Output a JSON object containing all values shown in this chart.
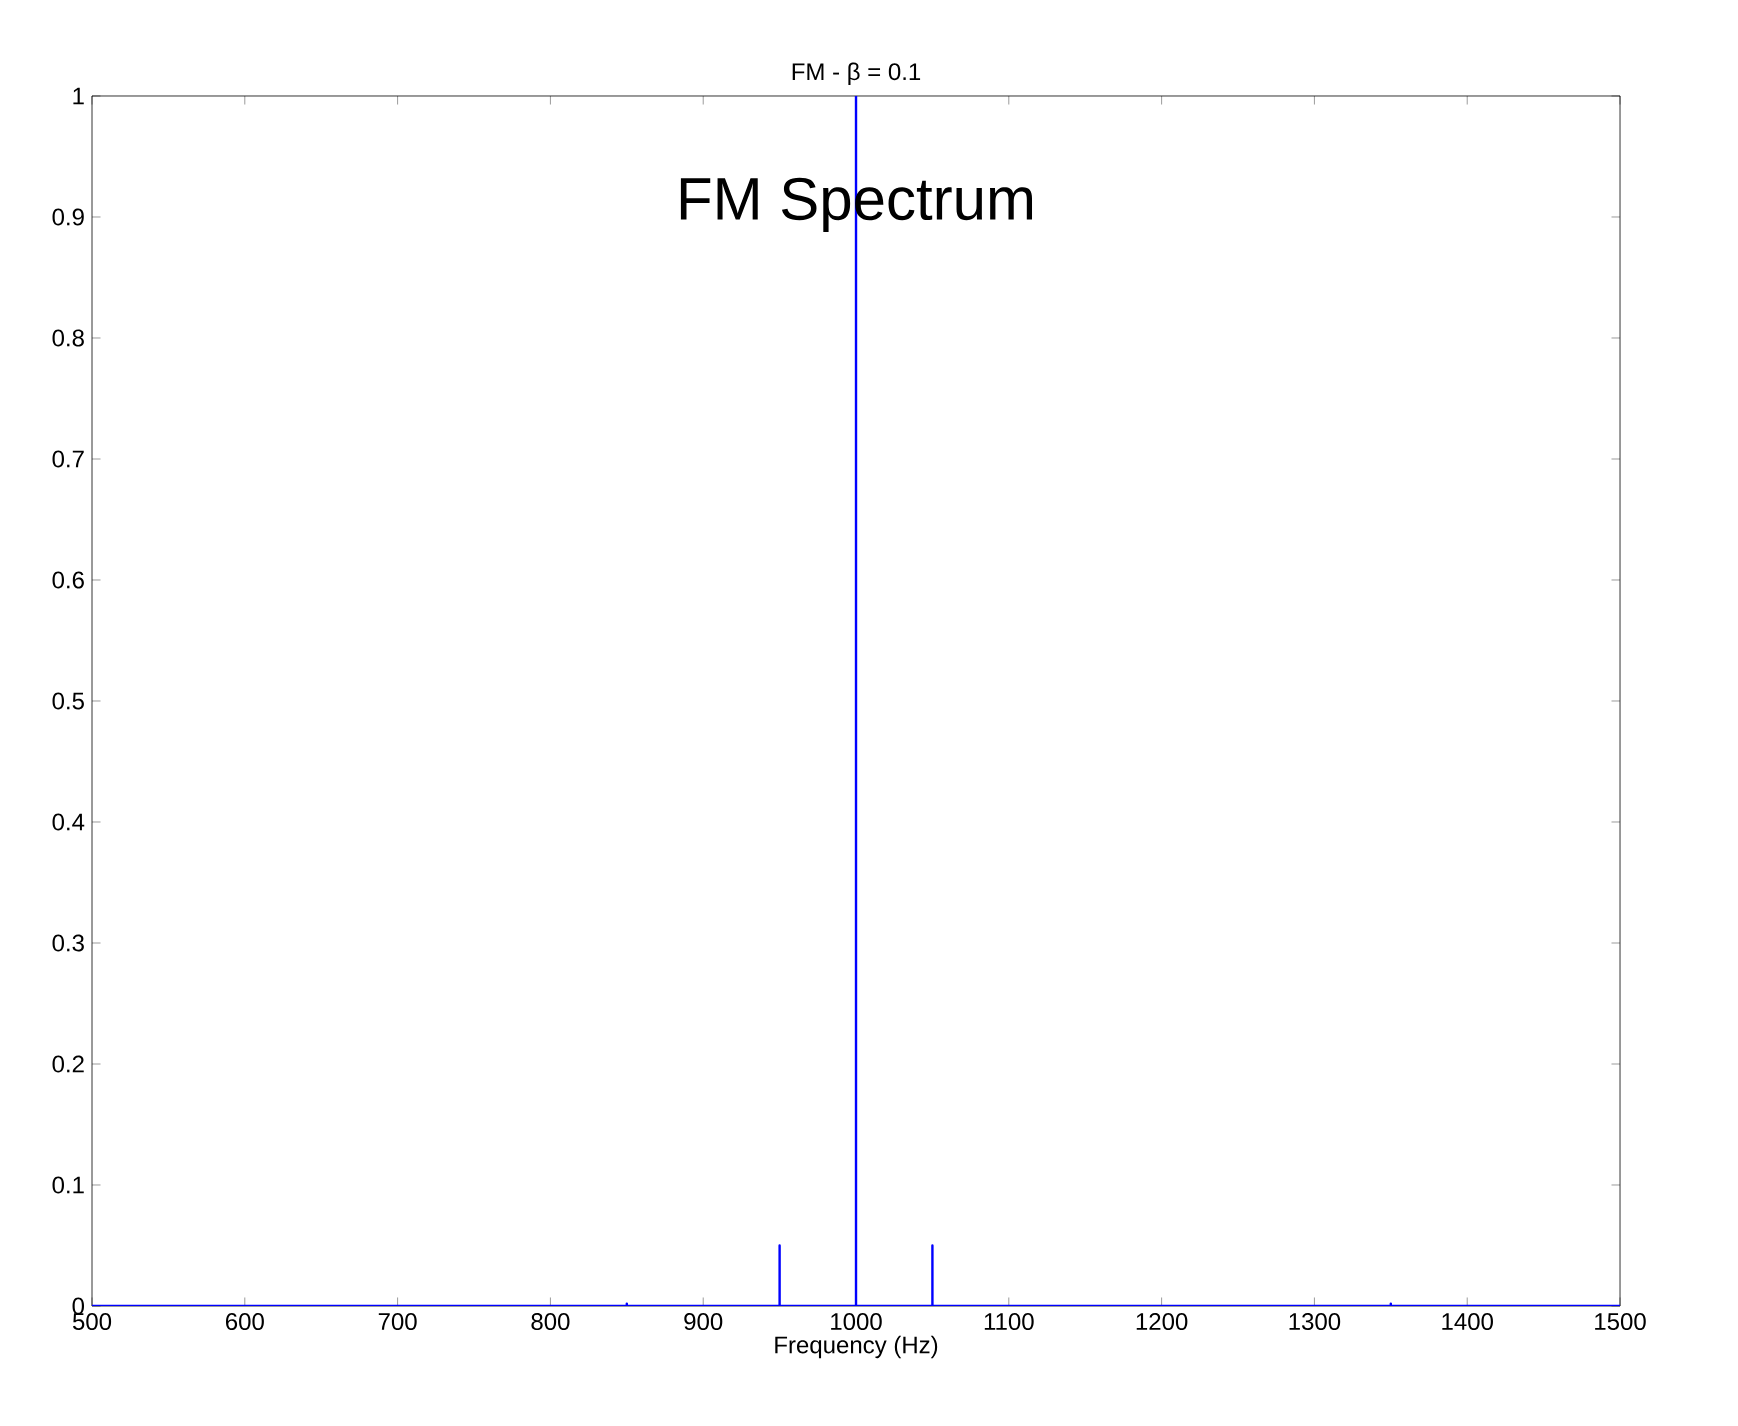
{
  "chart_data": {
    "type": "line",
    "title": "FM - β = 0.1",
    "xlabel": "Frequency (Hz)",
    "annotations": [
      "FM Spectrum"
    ],
    "series": [
      {
        "color": "#0000ff",
        "x": [
          500,
          850,
          850,
          850,
          950,
          950,
          950,
          1000,
          1000,
          1000,
          1050,
          1050,
          1050,
          1350,
          1350,
          1350,
          1500
        ],
        "values": [
          0,
          0,
          0.002,
          0,
          0,
          0.05,
          0,
          0,
          1,
          0,
          0,
          0.05,
          0,
          0,
          0.002,
          0,
          0
        ]
      }
    ],
    "xlim": [
      500,
      1500
    ],
    "ylim": [
      0,
      1
    ],
    "xticks": [
      500,
      600,
      700,
      800,
      900,
      1000,
      1100,
      1200,
      1300,
      1400,
      1500
    ],
    "yticks": [
      0,
      0.1,
      0.2,
      0.3,
      0.4,
      0.5,
      0.6,
      0.7,
      0.8,
      0.9,
      1
    ]
  }
}
